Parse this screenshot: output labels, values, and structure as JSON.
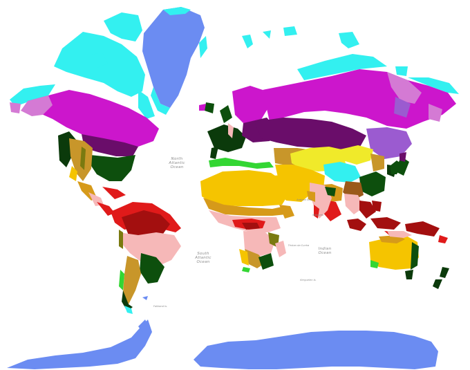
{
  "map": {
    "colors": {
      "ice": "#6b8cf2",
      "tundra": "#33f0f0",
      "subarctic": "#cc16cc",
      "subarctic_dry": "#d47ad4",
      "cold_continental": "#6a0d6a",
      "cold_continental_light": "#9b5bd0",
      "highland_yellow": "#f0ea2a",
      "temperate_oceanic": "#0b3a0b",
      "humid_subtropical": "#0d4f0d",
      "mediterranean": "#33d633",
      "hot_desert": "#f5c400",
      "cold_semi_arid": "#c8962a",
      "hot_semi_arid": "#d69a1a",
      "monsoon_brown": "#9b5a1a",
      "tropical_rainforest": "#a30f0f",
      "tropical_monsoon": "#e01a1a",
      "savanna": "#f6b8b8",
      "subtropical_highland": "#7a7a10"
    },
    "labels": {
      "north_atlantic": [
        "North",
        "Atlantic",
        "Ocean"
      ],
      "south_atlantic": [
        "South",
        "Atlantic",
        "Ocean"
      ],
      "indian": [
        "Indian",
        "Ocean"
      ],
      "small": [
        "Arabian Sea",
        "Maldives",
        "Tristan da Cunha",
        "Falkland Is.",
        "Kerguelen Is."
      ]
    }
  }
}
